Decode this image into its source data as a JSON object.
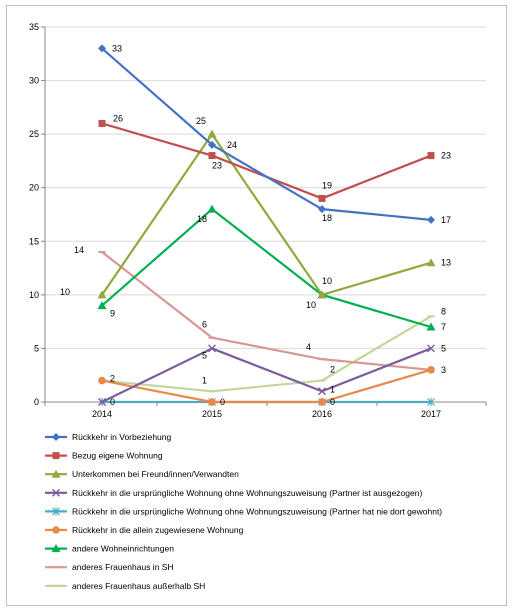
{
  "chart_data": {
    "type": "line",
    "x": [
      "2014",
      "2015",
      "2016",
      "2017"
    ],
    "ylim": [
      0,
      35
    ],
    "yticks": [
      0,
      5,
      10,
      15,
      20,
      25,
      30,
      35
    ],
    "grid": "horizontal",
    "legend_position": "bottom",
    "series": [
      {
        "name": "Rückkehr in Vorbeziehung",
        "values": [
          33,
          24,
          18,
          17
        ],
        "color": "#4472C4",
        "marker": "diamond"
      },
      {
        "name": "Bezug eigene Wohnung",
        "values": [
          26,
          23,
          19,
          23
        ],
        "color": "#C0504D",
        "marker": "square"
      },
      {
        "name": "Unterkommen bei Freund/innen/Verwandten",
        "values": [
          10,
          25,
          10,
          13
        ],
        "color": "#8FAA3E",
        "marker": "triangle"
      },
      {
        "name": "Rückkehr in die ursprüngliche Wohnung ohne Wohnungszuweisung (Partner ist ausgezogen)",
        "values": [
          0,
          5,
          1,
          5
        ],
        "color": "#7A5C9E",
        "marker": "x"
      },
      {
        "name": "Rückkehr in die ursprüngliche Wohnung ohne Wohnungszuweisung (Partner hat nie dort gewohnt)",
        "values": [
          0,
          0,
          0,
          0
        ],
        "color": "#4BACC6",
        "marker": "star"
      },
      {
        "name": "Rückkehr in die allein zugewiesene Wohnung",
        "values": [
          2,
          0,
          0,
          3
        ],
        "color": "#E8894A",
        "marker": "circle"
      },
      {
        "name": "andere Wohneinrichtungen",
        "values": [
          9,
          18,
          10,
          7
        ],
        "color": "#00B050",
        "marker": "triangle"
      },
      {
        "name": "anderes Frauenhaus in SH",
        "values": [
          14,
          6,
          4,
          3
        ],
        "color": "#D99694",
        "marker": "dash"
      },
      {
        "name": "anderes Frauenhaus außerhalb SH",
        "values": [
          2,
          1,
          2,
          8
        ],
        "color": "#C3D69B",
        "marker": "dash"
      }
    ],
    "data_labels": [
      {
        "series": 0,
        "point": 0,
        "text": "33"
      },
      {
        "series": 0,
        "point": 1,
        "text": "24"
      },
      {
        "series": 0,
        "point": 2,
        "text": "18"
      },
      {
        "series": 0,
        "point": 3,
        "text": "17"
      },
      {
        "series": 1,
        "point": 0,
        "text": "26"
      },
      {
        "series": 1,
        "point": 1,
        "text": "23"
      },
      {
        "series": 1,
        "point": 2,
        "text": "19"
      },
      {
        "series": 1,
        "point": 3,
        "text": "23"
      },
      {
        "series": 2,
        "point": 0,
        "text": "10"
      },
      {
        "series": 2,
        "point": 1,
        "text": "25"
      },
      {
        "series": 2,
        "point": 2,
        "text": "10"
      },
      {
        "series": 2,
        "point": 3,
        "text": "13"
      },
      {
        "series": 6,
        "point": 0,
        "text": "9"
      },
      {
        "series": 6,
        "point": 1,
        "text": "18"
      },
      {
        "series": 6,
        "point": 2,
        "text": "10"
      },
      {
        "series": 6,
        "point": 3,
        "text": "7"
      },
      {
        "series": 7,
        "point": 0,
        "text": "14"
      },
      {
        "series": 7,
        "point": 1,
        "text": "6"
      },
      {
        "series": 7,
        "point": 2,
        "text": "4"
      },
      {
        "series": 7,
        "point": 3,
        "text": "3"
      },
      {
        "series": 3,
        "point": 1,
        "text": "5"
      },
      {
        "series": 3,
        "point": 2,
        "text": "1"
      },
      {
        "series": 3,
        "point": 3,
        "text": "5"
      },
      {
        "series": 4,
        "point": 0,
        "text": "0"
      },
      {
        "series": 5,
        "point": 0,
        "text": "2"
      },
      {
        "series": 5,
        "point": 1,
        "text": "0"
      },
      {
        "series": 5,
        "point": 2,
        "text": "0"
      },
      {
        "series": 8,
        "point": 1,
        "text": "1"
      },
      {
        "series": 8,
        "point": 2,
        "text": "2"
      },
      {
        "series": 8,
        "point": 3,
        "text": "8"
      }
    ]
  }
}
